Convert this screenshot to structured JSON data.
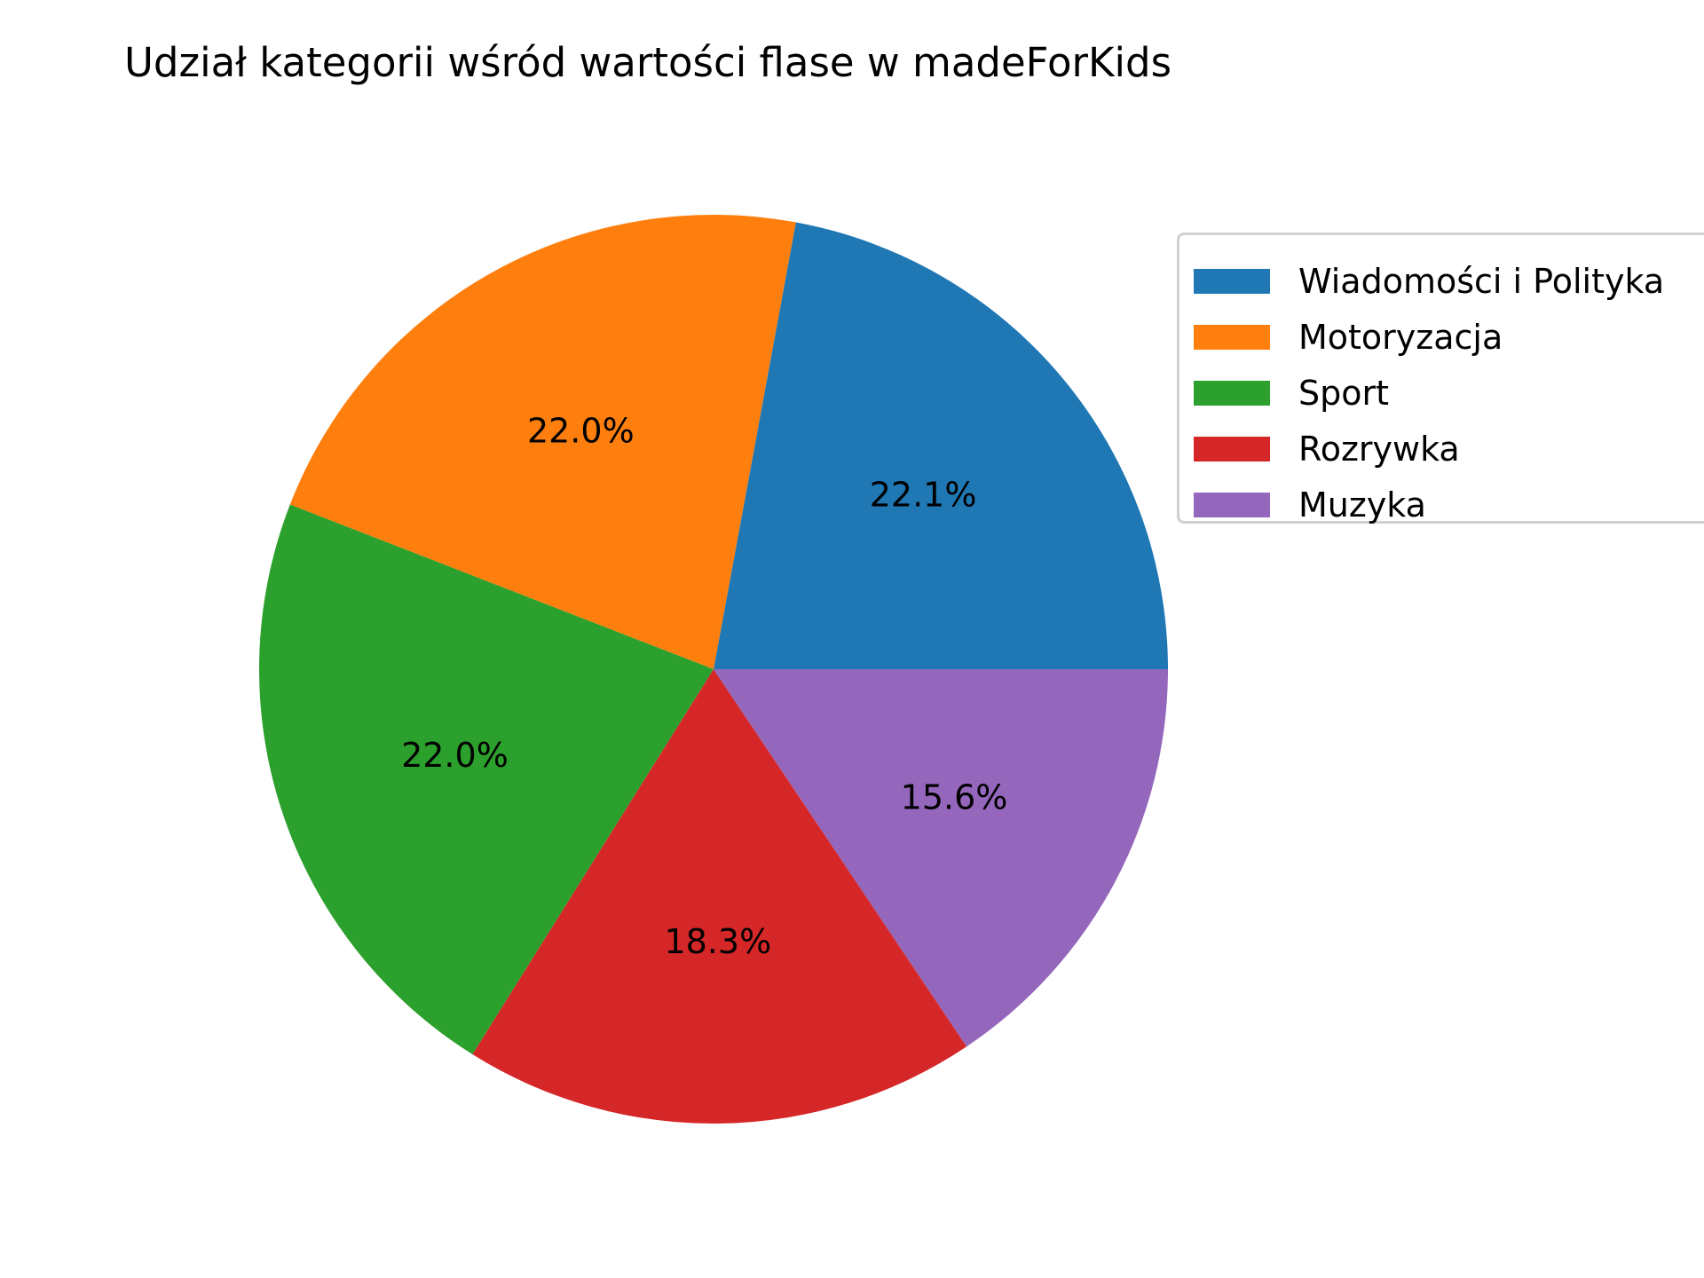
{
  "chart_data": {
    "type": "pie",
    "title": "Udział kategorii wśród wartości flase w madeForKids",
    "categories": [
      "Wiadomości i Polityka",
      "Motoryzacja",
      "Sport",
      "Rozrywka",
      "Muzyka"
    ],
    "values": [
      22.1,
      22.0,
      22.0,
      18.3,
      15.6
    ],
    "value_labels": [
      "22.1%",
      "22.0%",
      "22.0%",
      "18.3%",
      "15.6%"
    ],
    "colors": [
      "#1f77b4",
      "#ff7f0e",
      "#2ca02c",
      "#d62728",
      "#9467bd"
    ],
    "start_angle_deg": 0,
    "direction": "counterclockwise",
    "legend": {
      "position": "upper-right",
      "entries": [
        "Wiadomości i Polityka",
        "Motoryzacja",
        "Sport",
        "Rozrywka",
        "Muzyka"
      ]
    }
  }
}
